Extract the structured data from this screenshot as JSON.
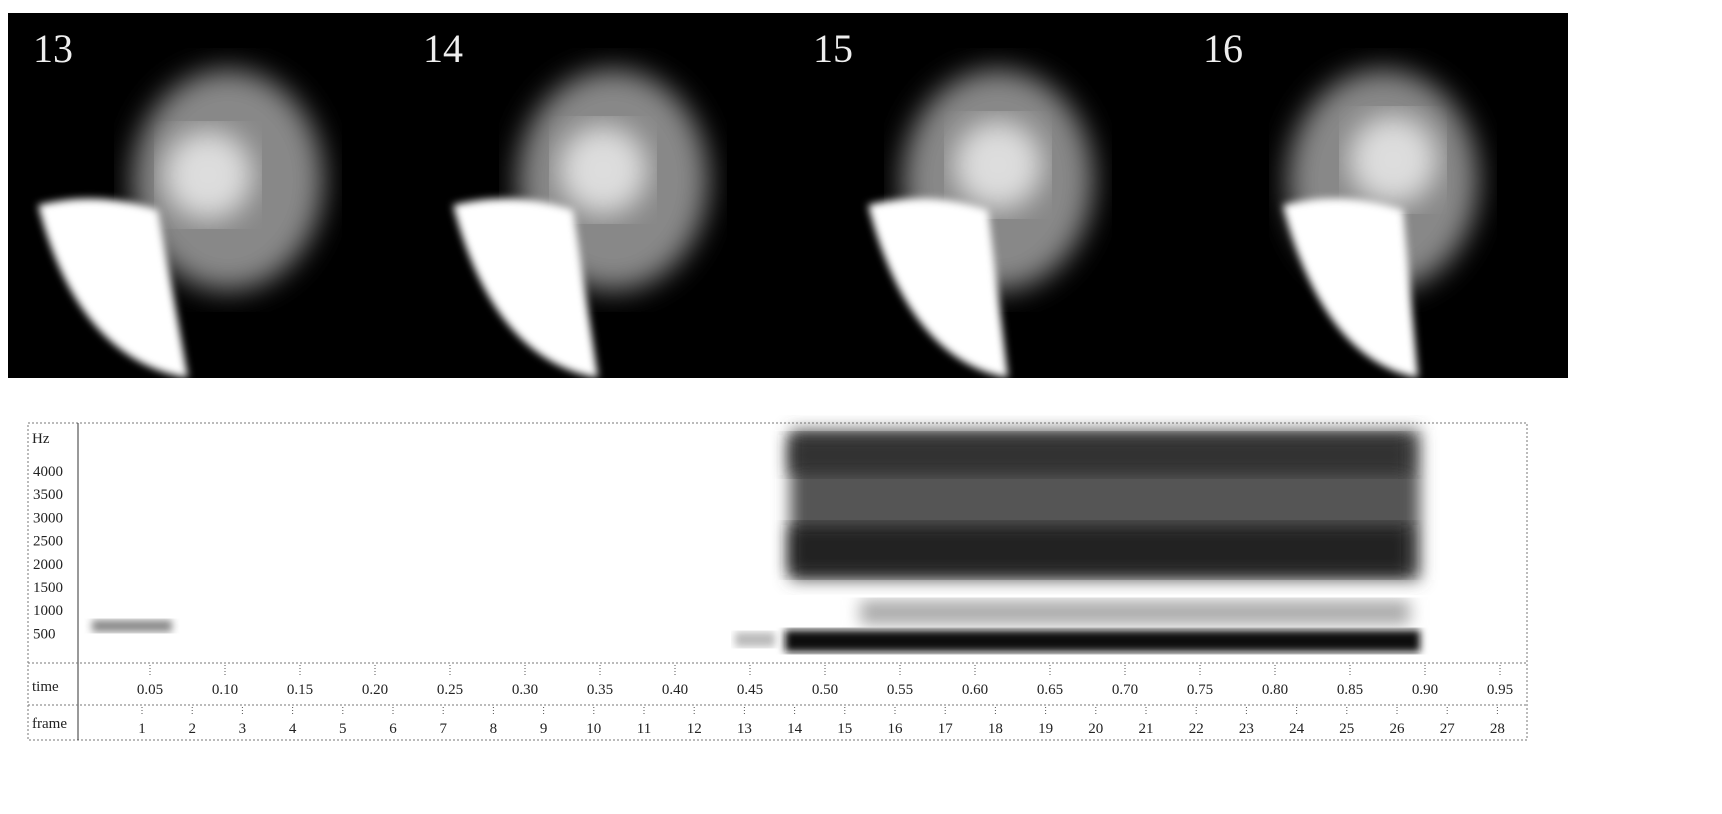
{
  "frames": [
    "13",
    "14",
    "15",
    "16"
  ],
  "spectrogram": {
    "unit": "Hz",
    "frequency_labels": [
      "4000",
      "3500",
      "3000",
      "2500",
      "2000",
      "1500",
      "1000",
      "500"
    ],
    "time_row_label": "time",
    "time_labels": [
      "0.05",
      "0.10",
      "0.15",
      "0.20",
      "0.25",
      "0.30",
      "0.35",
      "0.40",
      "0.45",
      "0.50",
      "0.55",
      "0.60",
      "0.65",
      "0.70",
      "0.75",
      "0.80",
      "0.85",
      "0.90",
      "0.95"
    ],
    "frame_row_label": "frame",
    "frame_labels": [
      "1",
      "2",
      "3",
      "4",
      "5",
      "6",
      "7",
      "8",
      "9",
      "10",
      "11",
      "12",
      "13",
      "14",
      "15",
      "16",
      "17",
      "18",
      "19",
      "20",
      "21",
      "22",
      "23",
      "24",
      "25",
      "26",
      "27",
      "28"
    ]
  }
}
